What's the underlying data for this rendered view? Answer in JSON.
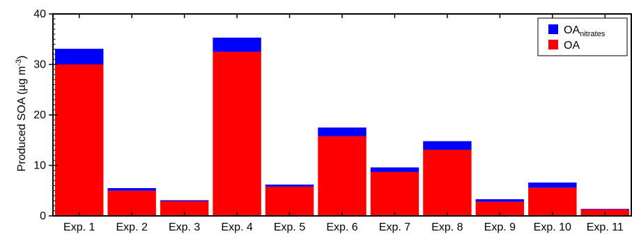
{
  "chart_data": {
    "type": "bar",
    "stacked": true,
    "categories": [
      "Exp. 1",
      "Exp. 2",
      "Exp. 3",
      "Exp. 4",
      "Exp. 5",
      "Exp. 6",
      "Exp. 7",
      "Exp. 8",
      "Exp. 9",
      "Exp. 10",
      "Exp. 11"
    ],
    "series": [
      {
        "name": "OA",
        "color": "#ff0000",
        "values": [
          30.0,
          5.0,
          2.9,
          32.5,
          5.8,
          15.8,
          8.7,
          13.1,
          2.8,
          5.6,
          1.3
        ]
      },
      {
        "name_main": "OA",
        "name_sub": "nitrates",
        "color": "#0000ff",
        "values": [
          3.1,
          0.5,
          0.2,
          2.8,
          0.4,
          1.7,
          0.9,
          1.7,
          0.5,
          1.0,
          0.1
        ]
      }
    ],
    "ylabel_main": "Produced SOA (µg m",
    "ylabel_sup": "-3",
    "ylabel_close": ")",
    "xlabel": "",
    "ylim": [
      0,
      40
    ],
    "yticks": [
      0,
      10,
      20,
      30,
      40
    ],
    "grid": false,
    "legend_position": "top-right"
  }
}
